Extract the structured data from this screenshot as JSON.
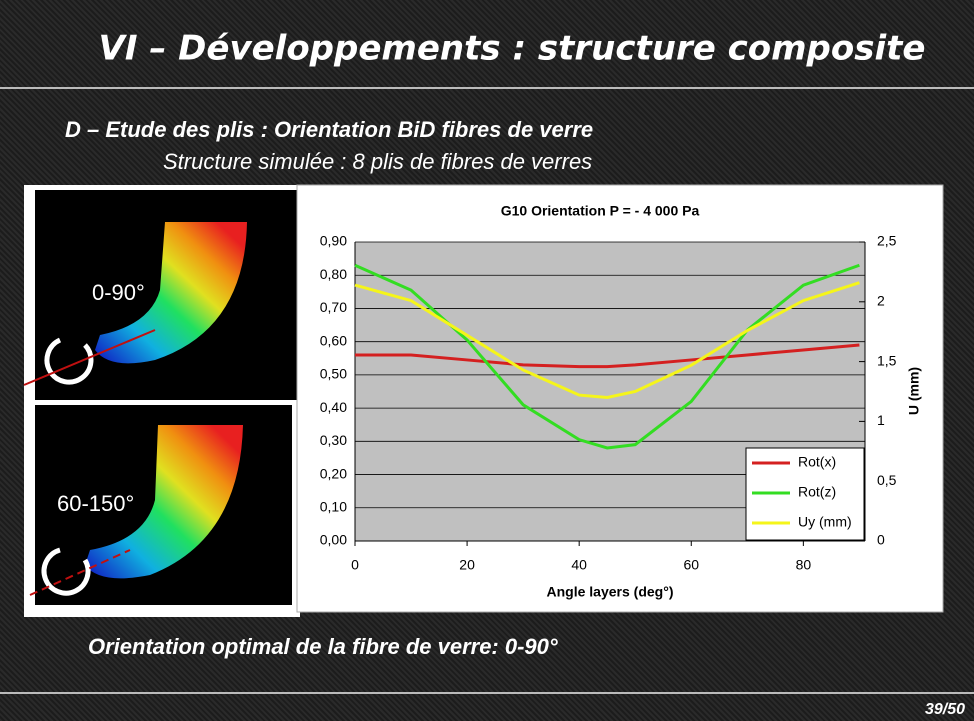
{
  "header": {
    "title": "VI – Développements : structure composite",
    "heading": "D – Etude des plis : Orientation BiD fibres de verre",
    "subheading": "Structure simulée : 8 plis de fibres de verres"
  },
  "images": [
    {
      "label": "0-90°"
    },
    {
      "label": "60-150°"
    }
  ],
  "chart_data": {
    "type": "line",
    "title": "G10 Orientation P = - 4 000 Pa",
    "x_label": "Angle layers (deg°)",
    "y2_label": "U (mm)",
    "x": [
      0,
      10,
      20,
      30,
      40,
      45,
      50,
      60,
      70,
      80,
      90
    ],
    "xlim": [
      0,
      91
    ],
    "xticks": [
      0,
      20,
      40,
      60,
      80
    ],
    "ylim": [
      0,
      0.9
    ],
    "yticks": [
      {
        "value": 0,
        "label": "0,00"
      },
      {
        "value": 0.1,
        "label": "0,10"
      },
      {
        "value": 0.2,
        "label": "0,20"
      },
      {
        "value": 0.3,
        "label": "0,30"
      },
      {
        "value": 0.4,
        "label": "0,40"
      },
      {
        "value": 0.5,
        "label": "0,50"
      },
      {
        "value": 0.6,
        "label": "0,60"
      },
      {
        "value": 0.7,
        "label": "0,70"
      },
      {
        "value": 0.8,
        "label": "0,80"
      },
      {
        "value": 0.9,
        "label": "0,90"
      }
    ],
    "y2lim": [
      0,
      2.5
    ],
    "y2ticks": [
      0,
      {
        "value": 0.5,
        "label": "0,5"
      },
      1,
      {
        "value": 1.5,
        "label": "1,5"
      },
      2,
      {
        "value": 2.5,
        "label": "2,5"
      }
    ],
    "grid": true,
    "legend": "lower right",
    "series": [
      {
        "name": "Rot(x)",
        "color": "#d42020",
        "values": [
          0.56,
          0.56,
          0.545,
          0.53,
          0.525,
          0.525,
          0.53,
          0.545,
          0.56,
          0.575,
          0.59
        ]
      },
      {
        "name": "Rot(z)",
        "color": "#33dd22",
        "values": [
          0.83,
          0.755,
          0.605,
          0.41,
          0.305,
          0.28,
          0.29,
          0.42,
          0.635,
          0.77,
          0.83
        ]
      },
      {
        "name": "Uy (mm)",
        "color": "#f5f51a",
        "axis": "y2",
        "values": [
          2.14,
          2.01,
          1.72,
          1.43,
          1.22,
          1.2,
          1.25,
          1.47,
          1.76,
          2.01,
          2.16
        ]
      }
    ]
  },
  "conclusion": "Orientation optimal de la fibre de verre: 0-90°",
  "page_number": "39/50"
}
